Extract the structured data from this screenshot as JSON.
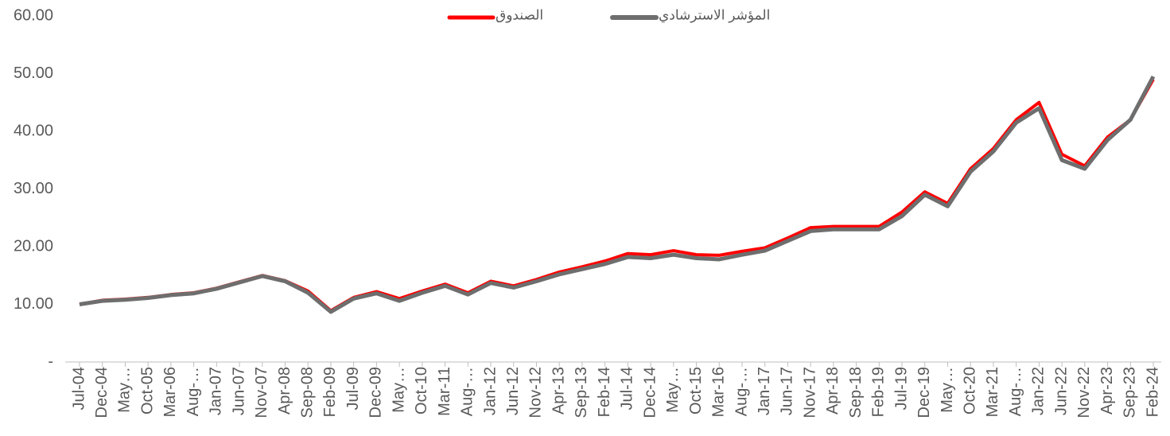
{
  "chart_data": {
    "type": "line",
    "categories": [
      "Jul-04",
      "Dec-04",
      "May…",
      "Oct-05",
      "Mar-06",
      "Aug-…",
      "Jan-07",
      "Jun-07",
      "Nov-07",
      "Apr-08",
      "Sep-08",
      "Feb-09",
      "Jul-09",
      "Dec-09",
      "May…",
      "Oct-10",
      "Mar-11",
      "Aug-…",
      "Jan-12",
      "Jun-12",
      "Nov-12",
      "Apr-13",
      "Sep-13",
      "Feb-14",
      "Jul-14",
      "Dec-14",
      "May…",
      "Oct-15",
      "Mar-16",
      "Aug-…",
      "Jan-17",
      "Jun-17",
      "Nov-17",
      "Apr-18",
      "Sep-18",
      "Feb-19",
      "Jul-19",
      "Dec-19",
      "May…",
      "Oct-20",
      "Mar-21",
      "Aug-…",
      "Jan-22",
      "Jun-22",
      "Nov-22",
      "Apr-23",
      "Sep-23",
      "Feb-24"
    ],
    "series": [
      {
        "name": "الصندوق",
        "color": "#ff0000",
        "width": 4,
        "values": [
          10,
          10.7,
          10.9,
          11.2,
          11.7,
          12.0,
          12.8,
          13.9,
          15.0,
          14.1,
          12.3,
          8.9,
          11.2,
          12.2,
          11.0,
          12.3,
          13.5,
          12.0,
          14.0,
          13.2,
          14.3,
          15.6,
          16.5,
          17.5,
          18.8,
          18.6,
          19.3,
          18.6,
          18.5,
          19.2,
          19.8,
          21.5,
          23.3,
          23.5,
          23.5,
          23.5,
          26.0,
          29.5,
          27.5,
          33.5,
          37.0,
          42.0,
          45.0,
          36.0,
          34.0,
          39.0,
          42.0,
          49.0
        ]
      },
      {
        "name": "المؤشر  الاسترشادي",
        "color": "#6e6e6e",
        "width": 5,
        "values": [
          10,
          10.6,
          10.8,
          11.1,
          11.6,
          11.9,
          12.7,
          13.8,
          14.9,
          14.0,
          12.0,
          8.7,
          11.0,
          11.9,
          10.6,
          12.0,
          13.2,
          11.7,
          13.7,
          12.9,
          14.0,
          15.2,
          16.1,
          17.0,
          18.2,
          18.0,
          18.6,
          18.0,
          17.8,
          18.6,
          19.3,
          21.0,
          22.7,
          23.0,
          23.0,
          23.0,
          25.3,
          29.0,
          27.0,
          33.0,
          36.5,
          41.5,
          44.0,
          35.0,
          33.5,
          38.5,
          42.0,
          49.5
        ]
      }
    ],
    "ylim": [
      0,
      60
    ],
    "yticks": [
      {
        "value": 0,
        "label": "-"
      },
      {
        "value": 10,
        "label": "10.00"
      },
      {
        "value": 20,
        "label": "20.00"
      },
      {
        "value": 30,
        "label": "30.00"
      },
      {
        "value": 40,
        "label": "40.00"
      },
      {
        "value": 50,
        "label": "50.00"
      },
      {
        "value": 60,
        "label": "60.00"
      }
    ],
    "legend": "top"
  }
}
